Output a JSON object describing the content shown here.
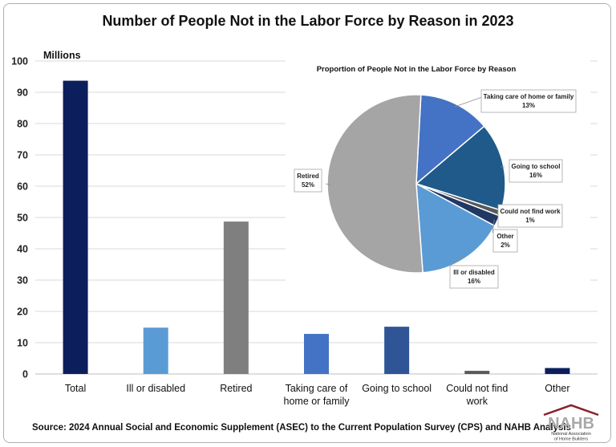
{
  "title": "Number of People Not in the Labor Force by Reason in 2023",
  "source": "Source: 2024 Annual Social and Economic Supplement (ASEC) to the Current Population Survey (CPS) and NAHB Analysis",
  "logo": {
    "word": "NAHB",
    "line1": "National Association",
    "line2": "of Home Builders"
  },
  "chart_data": [
    {
      "type": "bar",
      "title": "Number of People Not in the Labor Force by Reason in 2023",
      "ylabel": "Millions",
      "xlabel": "",
      "ylim": [
        0,
        100
      ],
      "yticks": [
        0,
        10,
        20,
        30,
        40,
        50,
        60,
        70,
        80,
        90,
        100
      ],
      "grid": true,
      "categories": [
        [
          "Total"
        ],
        [
          "Ill or disabled"
        ],
        [
          "Retired"
        ],
        [
          "Taking care of",
          "home or family"
        ],
        [
          "Going to school"
        ],
        [
          "Could not find",
          "work"
        ],
        [
          "Other"
        ]
      ],
      "values": [
        93.7,
        14.8,
        48.7,
        12.8,
        15.1,
        1.0,
        1.9
      ],
      "colors": [
        "#0c1f5c",
        "#5a9bd5",
        "#7f7f7f",
        "#4472c4",
        "#2f5597",
        "#595959",
        "#0c1f5c"
      ]
    },
    {
      "type": "pie",
      "title": "Proportion of People Not in the Labor Force by Reason",
      "slices": [
        {
          "label": [
            "Taking care of home or family"
          ],
          "percent": 13,
          "pct_text": "13%",
          "color": "#4472c4"
        },
        {
          "label": [
            "Going to school"
          ],
          "percent": 16,
          "pct_text": "16%",
          "color": "#1f5a8b"
        },
        {
          "label": [
            "Could not find work"
          ],
          "percent": 1,
          "pct_text": "1%",
          "color": "#595959"
        },
        {
          "label": [
            "Other"
          ],
          "percent": 2,
          "pct_text": "2%",
          "color": "#1f3864"
        },
        {
          "label": [
            "Ill or disabled"
          ],
          "percent": 16,
          "pct_text": "16%",
          "color": "#5b9bd5"
        },
        {
          "label": [
            "Retired"
          ],
          "percent": 52,
          "pct_text": "52%",
          "color": "#a5a5a5"
        }
      ]
    }
  ]
}
